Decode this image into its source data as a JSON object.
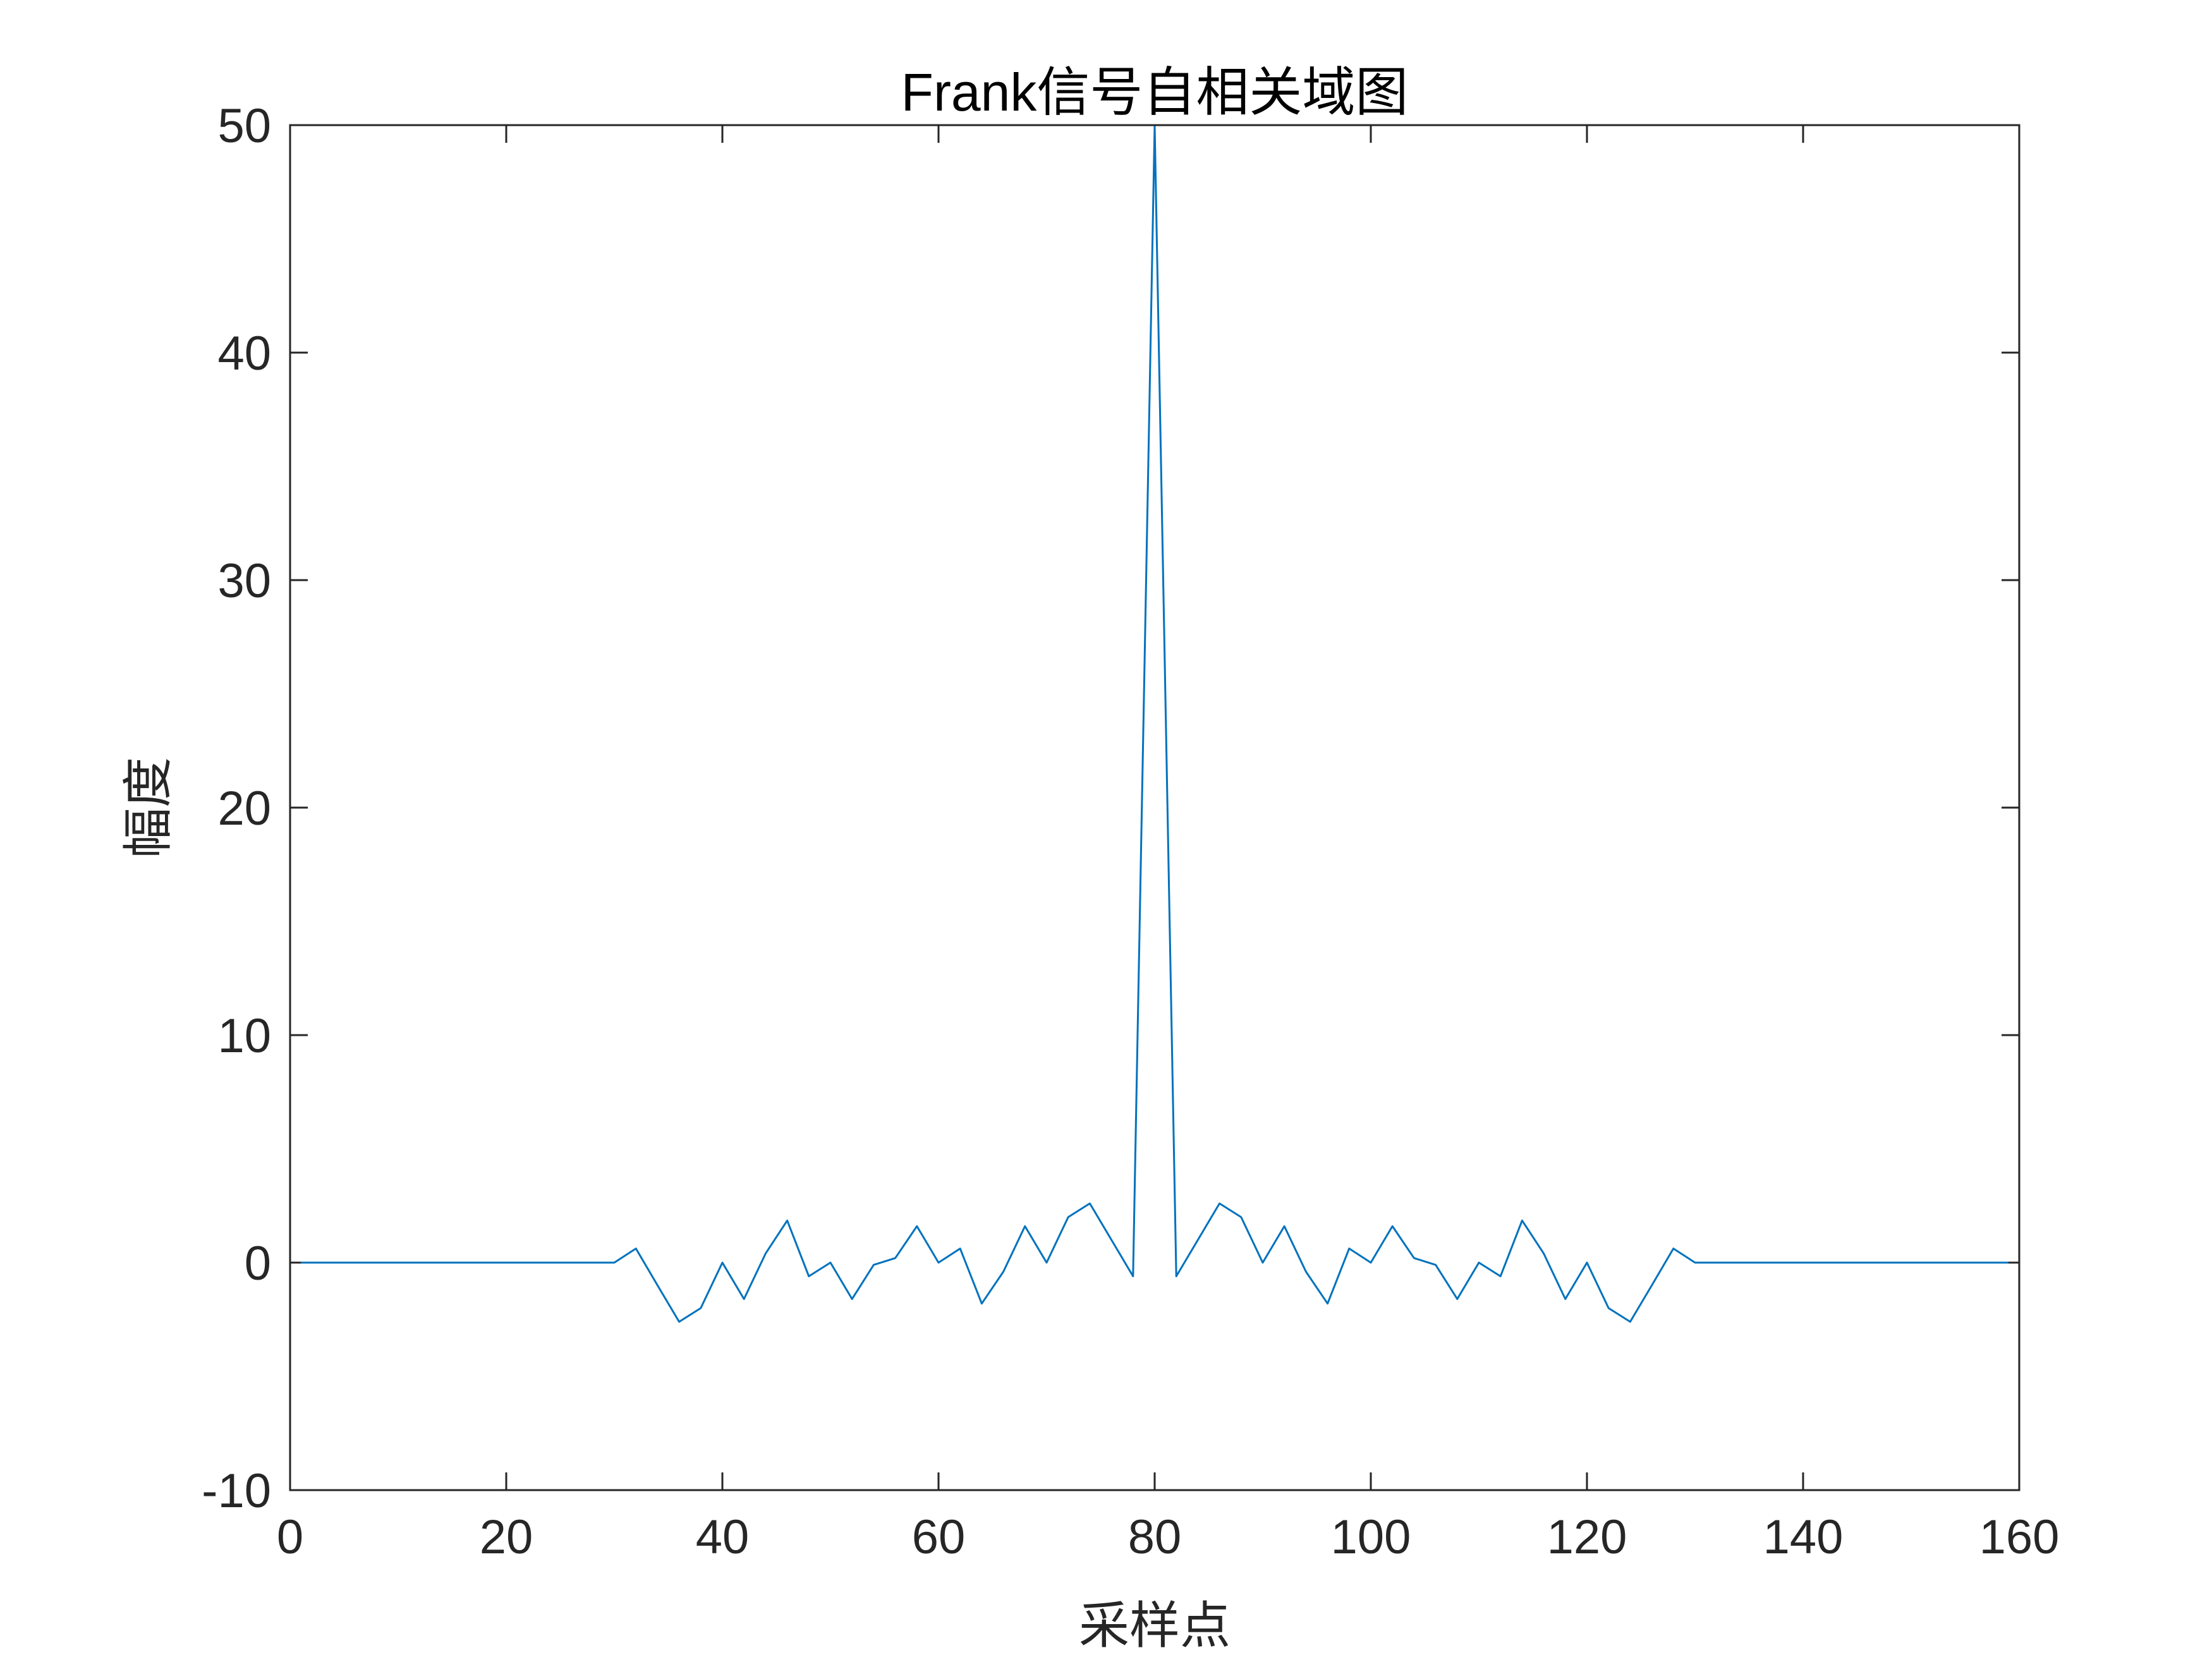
{
  "chart_data": {
    "type": "line",
    "title": "Frank信号自相关域图",
    "xlabel": "采样点",
    "ylabel": "幅度",
    "xlim": [
      0,
      160
    ],
    "ylim": [
      -10,
      50
    ],
    "xticks": [
      0,
      20,
      40,
      60,
      80,
      100,
      120,
      140,
      160
    ],
    "yticks": [
      -10,
      0,
      10,
      20,
      30,
      40,
      50
    ],
    "xtick_labels": [
      "0",
      "20",
      "40",
      "60",
      "80",
      "100",
      "120",
      "140",
      "160"
    ],
    "ytick_labels": [
      "-10",
      "0",
      "10",
      "20",
      "30",
      "40",
      "50"
    ],
    "grid": false,
    "line_color": "#0072BD",
    "axis_color": "#262626",
    "series": [
      {
        "x": [
          1,
          30,
          32,
          34,
          36,
          38,
          40,
          42,
          44,
          46,
          48,
          50,
          52,
          54,
          56,
          58,
          60,
          62,
          64,
          66,
          68,
          70,
          72,
          74,
          76,
          78,
          80,
          82,
          84,
          86,
          88,
          90,
          92,
          94,
          96,
          98,
          100,
          102,
          104,
          106,
          108,
          110,
          112,
          114,
          116,
          118,
          120,
          122,
          124,
          126,
          128,
          130,
          159
        ],
        "values": [
          0,
          0,
          0.62,
          -1.0,
          -2.6,
          -2.0,
          0,
          -1.6,
          0.4,
          1.85,
          -0.6,
          0,
          -1.6,
          -0.1,
          0.2,
          1.6,
          0,
          0.62,
          -1.8,
          -0.4,
          1.6,
          0,
          2.0,
          2.6,
          1.0,
          -0.6,
          50,
          -0.6,
          1.0,
          2.6,
          2.0,
          0,
          1.6,
          -0.4,
          -1.8,
          0.62,
          0,
          1.6,
          0.2,
          -0.1,
          -1.6,
          0,
          -0.6,
          1.85,
          0.4,
          -1.6,
          0,
          -2.0,
          -2.6,
          -1.0,
          0.62,
          0,
          0
        ]
      }
    ]
  }
}
